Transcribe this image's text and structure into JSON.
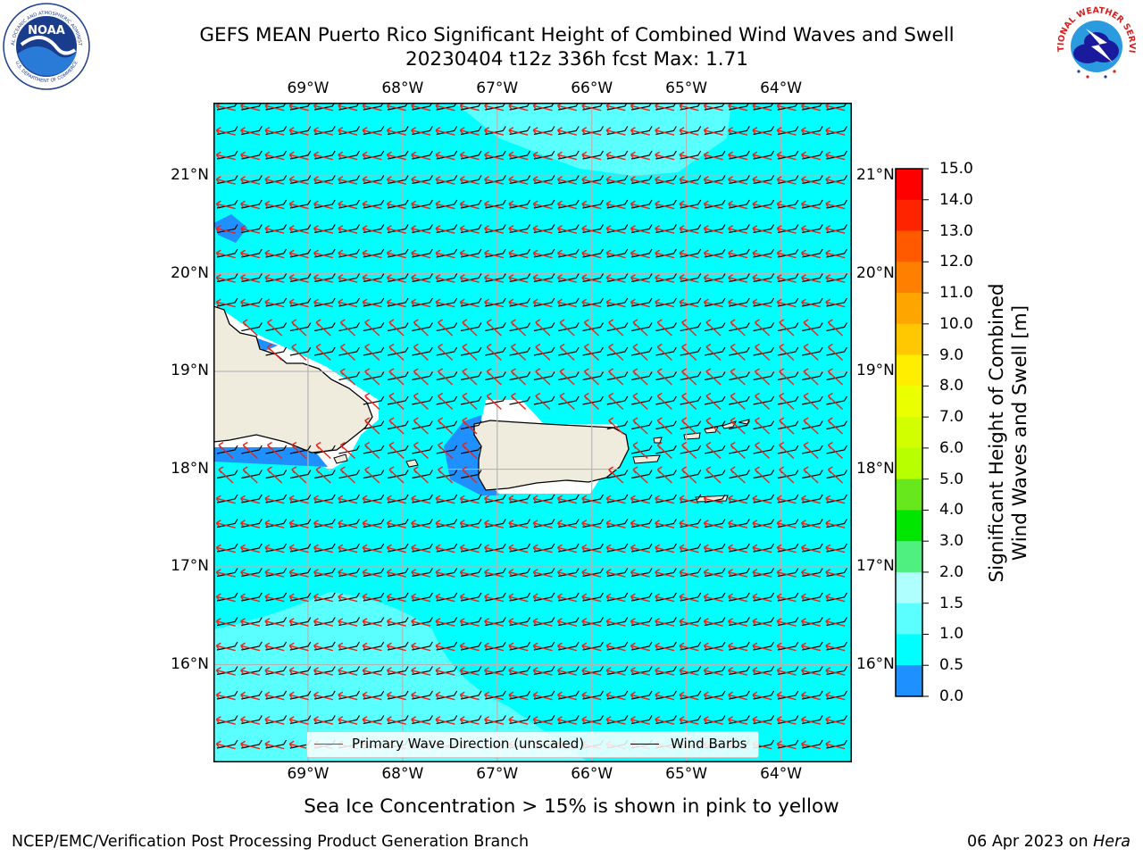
{
  "header": {
    "title_line1": "GEFS MEAN Puerto Rico Significant Height of Combined Wind Waves and Swell",
    "title_line2": "20230404 t12z 336h fcst   Max: 1.71"
  },
  "logos": {
    "noaa_text": "NOAA",
    "noaa_ring_top": "NATIONAL OCEANIC AND ATMOSPHERIC ADMINISTRATION",
    "noaa_ring_bottom": "U.S. DEPARTMENT OF COMMERCE",
    "nws_ring": "NATIONAL WEATHER SERVICE"
  },
  "map": {
    "lon_labels": [
      "69°W",
      "68°W",
      "67°W",
      "66°W",
      "65°W",
      "64°W"
    ],
    "lat_labels": [
      "21°N",
      "20°N",
      "19°N",
      "18°N",
      "17°N",
      "16°N"
    ],
    "bounds": {
      "lon_min": -70.0,
      "lon_max": -63.25,
      "lat_min": 15.0,
      "lat_max": 21.75
    }
  },
  "legend": {
    "wave_direction": "Primary Wave Direction (unscaled)",
    "wind_barbs": "Wind Barbs",
    "wave_color": "#e8251a",
    "barb_color": "#000000"
  },
  "colorbar": {
    "label_line1": "Significant Height of Combined",
    "label_line2": "Wind Waves and Swell [m]",
    "ticks": [
      "15.0",
      "14.0",
      "13.0",
      "12.0",
      "11.0",
      "10.0",
      "9.0",
      "8.0",
      "7.0",
      "6.0",
      "5.0",
      "4.0",
      "3.0",
      "2.0",
      "1.5",
      "1.0",
      "0.5",
      "0.0"
    ],
    "colors_top_to_bottom": [
      "#ff0000",
      "#ff2400",
      "#ff5a00",
      "#ff8000",
      "#ffa500",
      "#ffc800",
      "#ffee00",
      "#eaff00",
      "#d2ff00",
      "#b8ff00",
      "#66e81c",
      "#00e600",
      "#50f080",
      "#b0ffff",
      "#5cffff",
      "#00ffff",
      "#1e90ff",
      "#0000ff"
    ]
  },
  "colors": {
    "ocean_main": "#00ffff",
    "ocean_light": "#5affff",
    "ocean_blue": "#1e90ff",
    "land": "#efecdd",
    "grid": "#b4b4b4"
  },
  "note": "Sea Ice Concentration > 15% is shown in pink to yellow",
  "footer": {
    "left": "NCEP/EMC/Verification Post Processing Product Generation Branch",
    "date": "06 Apr 2023 on ",
    "machine": "Hera"
  }
}
